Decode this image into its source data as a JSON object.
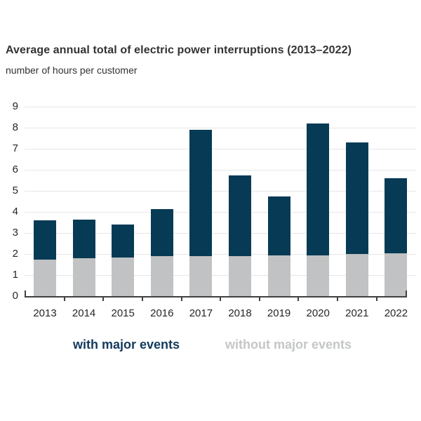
{
  "chart_data": {
    "type": "bar",
    "stacked": true,
    "title": "Average annual total of electric power interruptions (2013–2022)",
    "subtitle": "number of hours per customer",
    "xlabel": "",
    "ylabel": "number of hours per customer",
    "categories": [
      "2013",
      "2014",
      "2015",
      "2016",
      "2017",
      "2018",
      "2019",
      "2020",
      "2021",
      "2022"
    ],
    "series": [
      {
        "name": "without major events",
        "color": "#c1c2c3",
        "values": [
          1.75,
          1.8,
          1.85,
          1.9,
          1.9,
          1.9,
          1.95,
          1.95,
          2.0,
          2.05
        ]
      },
      {
        "name": "with major events",
        "color": "#063a55",
        "values": [
          1.85,
          1.85,
          1.55,
          2.25,
          6.0,
          3.85,
          2.8,
          6.25,
          5.3,
          3.55
        ]
      }
    ],
    "stack_totals": [
      3.6,
      3.65,
      3.4,
      4.15,
      7.9,
      5.75,
      4.75,
      8.2,
      7.3,
      5.6
    ],
    "ylim": [
      0,
      9
    ],
    "yticks": [
      0,
      1,
      2,
      3,
      4,
      5,
      6,
      7,
      8,
      9
    ],
    "grid": true,
    "legend_position": "bottom",
    "legend": [
      {
        "label": "with major events",
        "color": "#123a5c"
      },
      {
        "label": "without major events",
        "color": "#c4c6c8"
      }
    ]
  },
  "colors": {
    "background": "#ffffff",
    "gridline": "#e6e6e6",
    "axis": "#404040",
    "title_text": "#333333",
    "tick_text": "#262626"
  }
}
